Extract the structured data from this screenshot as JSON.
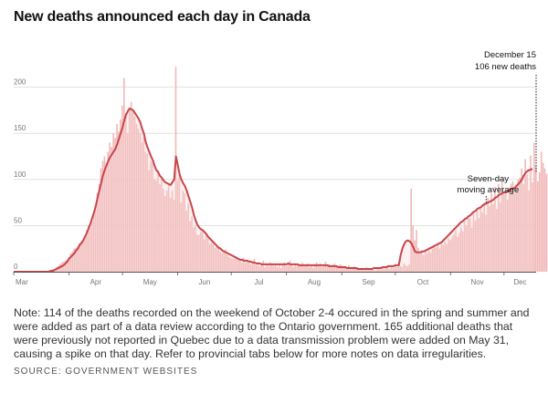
{
  "header": {
    "title": "New deaths announced each day in Canada"
  },
  "footer": {
    "note": "Note: 114 of the deaths recorded on the weekend of October 2-4 occured in the spring and summer and were added as part of a data review according to the Ontario government. 165 additional deaths that were previously not reported in Quebec due to a data transmission problem were added on May 31, causing a spike on that day. Refer to provincial tabs below for more notes on data irregularities.",
    "source": "SOURCE: GOVERNMENT WEBSITES"
  },
  "colors": {
    "bar": "#f1b7b7",
    "line": "#c8454a",
    "area": "#f6d3d3",
    "grid": "#cfcfcf",
    "axis": "#555555"
  },
  "chart_data": {
    "type": "bar",
    "title": "New deaths announced each day in Canada",
    "xlabel": "",
    "ylabel": "",
    "ylim": [
      0,
      250
    ],
    "x_range": [
      0,
      293
    ],
    "yticks": [
      0,
      50,
      100,
      150,
      200
    ],
    "xticks": [
      {
        "label": "Mar",
        "day": 0
      },
      {
        "label": "Apr",
        "day": 31
      },
      {
        "label": "May",
        "day": 61
      },
      {
        "label": "Jun",
        "day": 92
      },
      {
        "label": "Jul",
        "day": 122
      },
      {
        "label": "Aug",
        "day": 153
      },
      {
        "label": "Sep",
        "day": 184
      },
      {
        "label": "Oct",
        "day": 214
      },
      {
        "label": "Nov",
        "day": 245
      },
      {
        "label": "Dec",
        "day": 275
      }
    ],
    "series": [
      {
        "name": "New deaths (daily)",
        "type": "bar",
        "start_day": 0,
        "values": [
          0,
          0,
          0,
          0,
          0,
          0,
          0,
          0,
          0,
          0,
          0,
          0,
          0,
          0,
          0,
          0,
          0,
          0,
          0,
          1,
          2,
          2,
          3,
          3,
          5,
          6,
          8,
          10,
          11,
          12,
          13,
          16,
          20,
          22,
          25,
          26,
          28,
          31,
          33,
          35,
          37,
          45,
          50,
          48,
          55,
          62,
          70,
          85,
          95,
          112,
          120,
          125,
          118,
          130,
          140,
          135,
          150,
          145,
          160,
          152,
          165,
          180,
          210,
          172,
          150,
          176,
          184,
          175,
          168,
          160,
          155,
          150,
          140,
          145,
          130,
          128,
          110,
          120,
          118,
          100,
          99,
          110,
          95,
          100,
          90,
          82,
          88,
          95,
          80,
          88,
          78,
          222,
          99,
          110,
          75,
          88,
          85,
          66,
          74,
          55,
          60,
          48,
          50,
          40,
          40,
          43,
          46,
          35,
          40,
          36,
          30,
          32,
          30,
          26,
          29,
          25,
          22,
          20,
          21,
          24,
          18,
          16,
          15,
          14,
          14,
          16,
          13,
          12,
          10,
          15,
          10,
          13,
          11,
          8,
          9,
          14,
          7,
          10,
          6,
          9,
          12,
          5,
          8,
          6,
          10,
          7,
          6,
          9,
          5,
          7,
          4,
          8,
          10,
          6,
          9,
          12,
          7,
          5,
          8,
          6,
          9,
          7,
          10,
          6,
          8,
          9,
          5,
          7,
          4,
          8,
          10,
          6,
          9,
          5,
          7,
          11,
          6,
          8,
          5,
          7,
          9,
          6,
          4,
          8,
          7,
          5,
          6,
          3,
          7,
          5,
          4,
          6,
          3,
          5,
          4,
          2,
          4,
          3,
          5,
          2,
          3,
          4,
          2,
          1,
          3,
          4,
          2,
          5,
          3,
          4,
          6,
          3,
          5,
          4,
          7,
          5,
          8,
          6,
          5,
          9,
          7,
          6,
          8,
          90,
          50,
          34,
          45,
          26,
          20,
          22,
          18,
          24,
          20,
          23,
          21,
          25,
          28,
          26,
          30,
          25,
          32,
          29,
          33,
          30,
          36,
          34,
          38,
          40,
          45,
          38,
          42,
          48,
          44,
          55,
          50,
          60,
          58,
          48,
          63,
          55,
          66,
          58,
          70,
          64,
          75,
          62,
          80,
          71,
          85,
          73,
          92,
          68,
          95,
          75,
          99,
          84,
          87,
          78,
          91,
          95,
          98,
          85,
          90,
          100,
          102,
          112,
          95,
          122,
          105,
          88,
          126,
          97,
          140,
          115,
          98,
          108,
          130,
          118,
          112,
          106
        ]
      },
      {
        "name": "Seven-day moving average",
        "type": "line",
        "start_day": 0,
        "values": [
          0,
          0,
          0,
          0,
          0,
          0,
          0,
          0,
          0,
          0,
          0,
          0,
          0,
          0,
          0,
          0,
          0,
          0,
          0,
          0,
          0,
          1,
          1,
          2,
          3,
          4,
          5,
          6,
          7,
          9,
          11,
          14,
          16,
          18,
          20,
          23,
          25,
          29,
          31,
          34,
          38,
          42,
          47,
          52,
          58,
          64,
          71,
          80,
          88,
          96,
          104,
          110,
          115,
          120,
          124,
          127,
          130,
          133,
          138,
          144,
          150,
          156,
          164,
          170,
          174,
          177,
          176,
          175,
          172,
          169,
          166,
          162,
          155,
          150,
          141,
          135,
          130,
          125,
          121,
          115,
          110,
          108,
          104,
          102,
          99,
          97,
          96,
          95,
          94,
          97,
          100,
          125,
          116,
          106,
          100,
          96,
          93,
          88,
          82,
          76,
          70,
          62,
          56,
          51,
          48,
          46,
          45,
          43,
          41,
          38,
          36,
          34,
          32,
          30,
          28,
          26,
          25,
          23,
          22,
          21,
          20,
          19,
          18,
          17,
          16,
          15,
          14,
          13,
          13,
          12,
          12,
          12,
          11,
          11,
          10,
          10,
          9,
          9,
          9,
          8,
          8,
          8,
          8,
          8,
          8,
          8,
          8,
          8,
          8,
          8,
          8,
          8,
          8,
          8,
          9,
          8,
          8,
          8,
          8,
          8,
          7,
          7,
          7,
          7,
          7,
          7,
          7,
          7,
          7,
          7,
          7,
          7,
          7,
          7,
          7,
          7,
          7,
          6,
          6,
          6,
          6,
          6,
          5,
          5,
          5,
          5,
          5,
          4,
          4,
          4,
          4,
          4,
          4,
          3,
          3,
          3,
          3,
          3,
          3,
          3,
          3,
          3,
          4,
          4,
          4,
          4,
          4,
          5,
          5,
          5,
          6,
          6,
          6,
          6,
          7,
          7,
          7,
          18,
          25,
          30,
          33,
          34,
          33,
          31,
          27,
          22,
          21,
          21,
          21,
          22,
          22,
          23,
          24,
          25,
          26,
          27,
          28,
          29,
          30,
          31,
          32,
          34,
          36,
          38,
          40,
          42,
          44,
          46,
          48,
          50,
          52,
          54,
          55,
          57,
          58,
          60,
          61,
          63,
          65,
          66,
          68,
          69,
          70,
          72,
          73,
          74,
          75,
          76,
          77,
          78,
          80,
          81,
          83,
          84,
          85,
          86,
          86,
          87,
          88,
          89,
          90,
          91,
          93,
          95,
          97,
          100,
          104,
          107,
          109,
          110,
          111,
          111
        ]
      }
    ],
    "annotations": [
      {
        "label": "December 15",
        "label2": "106 new deaths",
        "day": 293,
        "value": 106
      },
      {
        "label": "Seven-day",
        "label2": "moving average",
        "day": 265,
        "value": 72
      }
    ]
  }
}
